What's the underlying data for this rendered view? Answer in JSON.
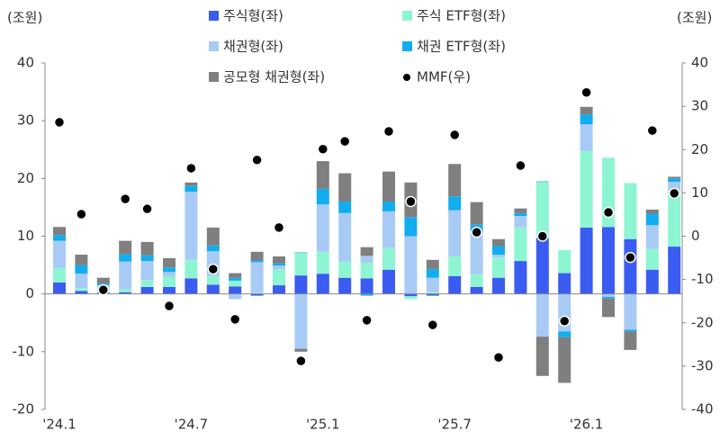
{
  "chart_data": {
    "type": "bar",
    "y_label": "(조원)",
    "y2_label": "(조원)",
    "categories": [
      "'24.1",
      null,
      null,
      null,
      null,
      null,
      "'24.7",
      null,
      null,
      null,
      null,
      null,
      "'25.1",
      null,
      null,
      null,
      null,
      null,
      "'25.7",
      null,
      null,
      null,
      null,
      null,
      "'26.1",
      null,
      null,
      null,
      null
    ],
    "ylim": [
      -20,
      40
    ],
    "yticks": [
      -20,
      -10,
      0,
      10,
      20,
      30,
      40
    ],
    "y2lim": [
      -40,
      40
    ],
    "y2ticks": [
      -40,
      -30,
      -20,
      -10,
      0,
      10,
      20,
      30,
      40
    ],
    "series": [
      {
        "name": "주식형(좌)",
        "color": "#3a5cf0",
        "values": [
          2.0,
          0.5,
          0.2,
          0.3,
          1.2,
          1.2,
          2.7,
          1.6,
          1.3,
          -0.3,
          1.5,
          3.2,
          3.5,
          2.8,
          2.7,
          4.2,
          -0.4,
          -0.3,
          3.1,
          1.2,
          2.8,
          5.7,
          9.7,
          3.6,
          11.5,
          11.6,
          9.5,
          4.2,
          8.2
        ]
      },
      {
        "name": "주식 ETF형(좌)",
        "color": "#8ef5d3",
        "values": [
          2.5,
          0.5,
          0.5,
          0.5,
          1.2,
          1.8,
          3.2,
          1.5,
          1.0,
          0.2,
          2.8,
          3.9,
          3.8,
          2.8,
          2.7,
          3.8,
          -0.5,
          0.3,
          3.4,
          2.2,
          3.5,
          5.8,
          9.7,
          4.0,
          13.3,
          12.0,
          9.7,
          3.6,
          9.7
        ]
      },
      {
        "name": "채권형(좌)",
        "color": "#a8cbf5",
        "values": [
          4.7,
          2.5,
          0.8,
          4.8,
          3.3,
          0.8,
          11.8,
          4.3,
          -0.9,
          5.3,
          0.6,
          -9.5,
          8.2,
          8.4,
          1.2,
          6.3,
          10.0,
          2.5,
          8.0,
          7.4,
          0.5,
          2.0,
          -7.4,
          -6.5,
          4.6,
          -0.5,
          -6.2,
          4.1,
          1.5
        ]
      },
      {
        "name": "채권 ETF형(좌)",
        "color": "#12adef",
        "values": [
          1.0,
          1.5,
          0.3,
          1.3,
          1.0,
          0.8,
          1.0,
          1.0,
          0.5,
          0.3,
          0.4,
          0.1,
          2.7,
          2.0,
          -0.3,
          1.7,
          3.3,
          1.5,
          2.4,
          1.2,
          1.5,
          0.5,
          0.1,
          -1.0,
          1.7,
          -0.3,
          -0.3,
          2.0,
          0.6
        ]
      },
      {
        "name": "공모형 채권형(좌)",
        "color": "#7f7f7f",
        "values": [
          1.4,
          1.8,
          1.0,
          2.3,
          2.3,
          1.6,
          0.6,
          3.1,
          0.8,
          1.5,
          1.2,
          -0.5,
          4.8,
          4.9,
          1.5,
          5.2,
          6.0,
          1.6,
          5.6,
          3.9,
          1.2,
          0.8,
          -6.8,
          -7.9,
          1.3,
          -3.2,
          -3.2,
          0.7,
          0.3
        ]
      },
      {
        "name": "MMF(우)",
        "color": "#000000",
        "type": "scatter",
        "axis": "y2",
        "values": [
          26.3,
          5.1,
          -12.4,
          8.6,
          6.3,
          -16.1,
          15.7,
          -7.6,
          -19.2,
          17.6,
          2.0,
          -28.8,
          20.1,
          21.9,
          -19.4,
          24.2,
          8.0,
          -20.5,
          23.4,
          0.9,
          -28.0,
          16.3,
          0.0,
          -19.6,
          33.2,
          5.5,
          -4.9,
          24.4,
          9.9
        ]
      }
    ]
  }
}
